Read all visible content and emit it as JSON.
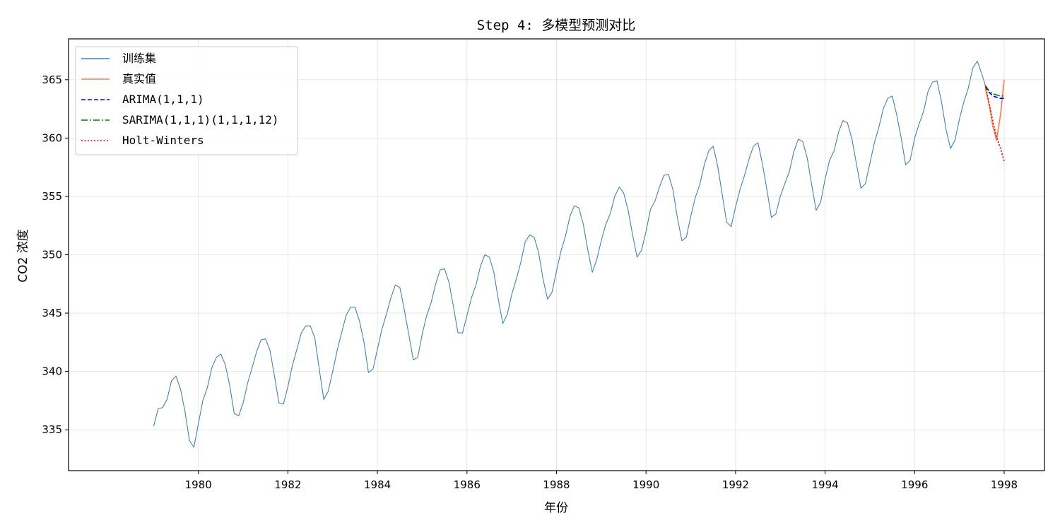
{
  "chart_data": {
    "type": "line",
    "title": "Step 4: 多模型预测对比",
    "xlabel": "年份",
    "ylabel": "CO2 浓度",
    "xlim": [
      1977.1,
      1998.9
    ],
    "ylim": [
      331.5,
      368.5
    ],
    "xticks": [
      1980,
      1982,
      1984,
      1986,
      1988,
      1990,
      1992,
      1994,
      1996,
      1998
    ],
    "yticks": [
      335,
      340,
      345,
      350,
      355,
      360,
      365
    ],
    "grid": true,
    "legend_position": "upper-left",
    "series": [
      {
        "name": "训练集",
        "color": "#4682b4",
        "style": "solid",
        "values": [
          [
            1979.0,
            335.3
          ],
          [
            1979.1,
            336.8
          ],
          [
            1979.2,
            336.9
          ],
          [
            1979.3,
            337.6
          ],
          [
            1979.4,
            339.2
          ],
          [
            1979.5,
            339.6
          ],
          [
            1979.6,
            338.5
          ],
          [
            1979.7,
            336.6
          ],
          [
            1979.8,
            334.1
          ],
          [
            1979.9,
            333.5
          ],
          [
            1980.0,
            335.5
          ],
          [
            1980.1,
            337.5
          ],
          [
            1980.2,
            338.6
          ],
          [
            1980.3,
            340.3
          ],
          [
            1980.4,
            341.2
          ],
          [
            1980.5,
            341.5
          ],
          [
            1980.6,
            340.6
          ],
          [
            1980.7,
            338.8
          ],
          [
            1980.8,
            336.4
          ],
          [
            1980.9,
            336.2
          ],
          [
            1981.0,
            337.3
          ],
          [
            1981.1,
            339.0
          ],
          [
            1981.2,
            340.3
          ],
          [
            1981.3,
            341.7
          ],
          [
            1981.4,
            342.7
          ],
          [
            1981.5,
            342.8
          ],
          [
            1981.6,
            341.8
          ],
          [
            1981.7,
            339.6
          ],
          [
            1981.8,
            337.3
          ],
          [
            1981.9,
            337.2
          ],
          [
            1982.0,
            338.7
          ],
          [
            1982.1,
            340.5
          ],
          [
            1982.2,
            341.9
          ],
          [
            1982.3,
            343.3
          ],
          [
            1982.4,
            343.9
          ],
          [
            1982.5,
            343.9
          ],
          [
            1982.6,
            342.9
          ],
          [
            1982.7,
            340.2
          ],
          [
            1982.8,
            337.6
          ],
          [
            1982.9,
            338.3
          ],
          [
            1983.0,
            340.0
          ],
          [
            1983.1,
            341.8
          ],
          [
            1983.2,
            343.3
          ],
          [
            1983.3,
            344.8
          ],
          [
            1983.4,
            345.5
          ],
          [
            1983.5,
            345.5
          ],
          [
            1983.6,
            344.3
          ],
          [
            1983.7,
            342.5
          ],
          [
            1983.8,
            339.9
          ],
          [
            1983.9,
            340.2
          ],
          [
            1984.0,
            341.9
          ],
          [
            1984.1,
            343.6
          ],
          [
            1984.2,
            344.9
          ],
          [
            1984.3,
            346.3
          ],
          [
            1984.4,
            347.4
          ],
          [
            1984.5,
            347.2
          ],
          [
            1984.6,
            345.3
          ],
          [
            1984.7,
            343.2
          ],
          [
            1984.8,
            341.0
          ],
          [
            1984.9,
            341.2
          ],
          [
            1985.0,
            343.2
          ],
          [
            1985.1,
            344.8
          ],
          [
            1985.2,
            345.9
          ],
          [
            1985.3,
            347.5
          ],
          [
            1985.4,
            348.7
          ],
          [
            1985.5,
            348.8
          ],
          [
            1985.6,
            347.6
          ],
          [
            1985.7,
            345.5
          ],
          [
            1985.8,
            343.3
          ],
          [
            1985.9,
            343.3
          ],
          [
            1986.0,
            344.8
          ],
          [
            1986.1,
            346.3
          ],
          [
            1986.2,
            347.4
          ],
          [
            1986.3,
            349.0
          ],
          [
            1986.4,
            350.0
          ],
          [
            1986.5,
            349.8
          ],
          [
            1986.6,
            348.5
          ],
          [
            1986.7,
            346.2
          ],
          [
            1986.8,
            344.1
          ],
          [
            1986.9,
            344.9
          ],
          [
            1987.0,
            346.6
          ],
          [
            1987.1,
            347.9
          ],
          [
            1987.2,
            349.3
          ],
          [
            1987.3,
            351.1
          ],
          [
            1987.4,
            351.7
          ],
          [
            1987.5,
            351.5
          ],
          [
            1987.6,
            350.2
          ],
          [
            1987.7,
            347.9
          ],
          [
            1987.8,
            346.2
          ],
          [
            1987.9,
            346.8
          ],
          [
            1988.0,
            348.6
          ],
          [
            1988.1,
            350.3
          ],
          [
            1988.2,
            351.6
          ],
          [
            1988.3,
            353.3
          ],
          [
            1988.4,
            354.2
          ],
          [
            1988.5,
            354.0
          ],
          [
            1988.6,
            352.6
          ],
          [
            1988.7,
            350.4
          ],
          [
            1988.8,
            348.5
          ],
          [
            1988.9,
            349.6
          ],
          [
            1989.0,
            351.2
          ],
          [
            1989.1,
            352.6
          ],
          [
            1989.2,
            353.5
          ],
          [
            1989.3,
            355.0
          ],
          [
            1989.4,
            355.8
          ],
          [
            1989.5,
            355.3
          ],
          [
            1989.6,
            353.8
          ],
          [
            1989.7,
            351.7
          ],
          [
            1989.8,
            349.8
          ],
          [
            1989.9,
            350.4
          ],
          [
            1990.0,
            352.0
          ],
          [
            1990.1,
            353.9
          ],
          [
            1990.2,
            354.6
          ],
          [
            1990.3,
            355.8
          ],
          [
            1990.4,
            356.8
          ],
          [
            1990.5,
            356.9
          ],
          [
            1990.6,
            355.6
          ],
          [
            1990.7,
            353.2
          ],
          [
            1990.8,
            351.2
          ],
          [
            1990.9,
            351.5
          ],
          [
            1991.0,
            353.3
          ],
          [
            1991.1,
            354.9
          ],
          [
            1991.2,
            356.0
          ],
          [
            1991.3,
            357.7
          ],
          [
            1991.4,
            358.9
          ],
          [
            1991.5,
            359.3
          ],
          [
            1991.6,
            357.6
          ],
          [
            1991.7,
            355.2
          ],
          [
            1991.8,
            352.8
          ],
          [
            1991.9,
            352.4
          ],
          [
            1992.0,
            354.1
          ],
          [
            1992.1,
            355.6
          ],
          [
            1992.2,
            356.8
          ],
          [
            1992.3,
            358.2
          ],
          [
            1992.4,
            359.3
          ],
          [
            1992.5,
            359.6
          ],
          [
            1992.6,
            357.8
          ],
          [
            1992.7,
            355.6
          ],
          [
            1992.8,
            353.2
          ],
          [
            1992.9,
            353.5
          ],
          [
            1993.0,
            355.0
          ],
          [
            1993.1,
            356.1
          ],
          [
            1993.2,
            357.1
          ],
          [
            1993.3,
            358.8
          ],
          [
            1993.4,
            359.9
          ],
          [
            1993.5,
            359.7
          ],
          [
            1993.6,
            358.3
          ],
          [
            1993.7,
            356.0
          ],
          [
            1993.8,
            353.8
          ],
          [
            1993.9,
            354.5
          ],
          [
            1994.0,
            356.5
          ],
          [
            1994.1,
            358.1
          ],
          [
            1994.2,
            358.9
          ],
          [
            1994.3,
            360.5
          ],
          [
            1994.4,
            361.5
          ],
          [
            1994.5,
            361.3
          ],
          [
            1994.6,
            359.9
          ],
          [
            1994.7,
            357.8
          ],
          [
            1994.8,
            355.7
          ],
          [
            1994.9,
            356.1
          ],
          [
            1995.0,
            357.8
          ],
          [
            1995.1,
            359.6
          ],
          [
            1995.2,
            360.9
          ],
          [
            1995.3,
            362.5
          ],
          [
            1995.4,
            363.4
          ],
          [
            1995.5,
            363.6
          ],
          [
            1995.6,
            362.0
          ],
          [
            1995.7,
            360.0
          ],
          [
            1995.8,
            357.7
          ],
          [
            1995.9,
            358.1
          ],
          [
            1996.0,
            360.0
          ],
          [
            1996.1,
            361.2
          ],
          [
            1996.2,
            362.3
          ],
          [
            1996.3,
            364.0
          ],
          [
            1996.4,
            364.8
          ],
          [
            1996.5,
            364.9
          ],
          [
            1996.6,
            363.1
          ],
          [
            1996.7,
            360.8
          ],
          [
            1996.8,
            359.1
          ],
          [
            1996.9,
            359.8
          ],
          [
            1997.0,
            361.6
          ],
          [
            1997.1,
            363.1
          ],
          [
            1997.2,
            364.3
          ],
          [
            1997.3,
            366.0
          ],
          [
            1997.4,
            366.6
          ],
          [
            1997.5,
            365.5
          ],
          [
            1997.58,
            364.5
          ]
        ]
      },
      {
        "name": "真实值",
        "color": "#ff7f50",
        "style": "solid",
        "values": [
          [
            1997.58,
            364.3
          ],
          [
            1997.67,
            362.8
          ],
          [
            1997.75,
            361.0
          ],
          [
            1997.83,
            359.8
          ],
          [
            1997.92,
            362.0
          ],
          [
            1998.0,
            365.0
          ]
        ]
      },
      {
        "name": "ARIMA(1,1,1)",
        "color": "#0000ff",
        "style": "dashed",
        "values": [
          [
            1997.58,
            364.4
          ],
          [
            1997.67,
            363.9
          ],
          [
            1997.75,
            363.6
          ],
          [
            1997.83,
            363.5
          ],
          [
            1997.92,
            363.4
          ],
          [
            1998.0,
            363.4
          ]
        ]
      },
      {
        "name": "SARIMA(1,1,1)(1,1,1,12)",
        "color": "#008000",
        "style": "dashdot",
        "values": [
          [
            1997.58,
            364.5
          ],
          [
            1997.67,
            364.0
          ],
          [
            1997.75,
            363.8
          ],
          [
            1997.83,
            363.7
          ],
          [
            1997.92,
            363.6
          ],
          [
            1998.0,
            363.6
          ]
        ]
      },
      {
        "name": "Holt-Winters",
        "color": "#ff0000",
        "style": "dotted",
        "values": [
          [
            1997.58,
            364.5
          ],
          [
            1997.67,
            362.8
          ],
          [
            1997.75,
            361.4
          ],
          [
            1997.83,
            360.1
          ],
          [
            1997.92,
            359.1
          ],
          [
            1998.0,
            358.0
          ]
        ]
      }
    ]
  }
}
